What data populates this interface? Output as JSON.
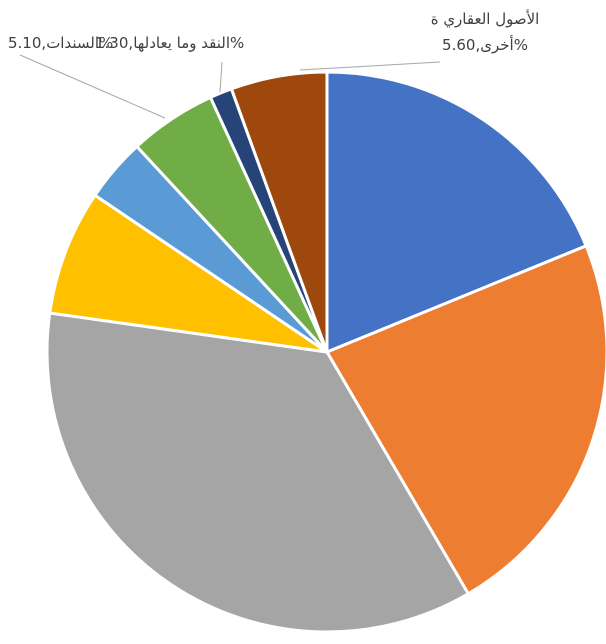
{
  "chart_data": {
    "type": "pie",
    "categories": [
      null,
      null,
      null,
      null,
      null,
      "السندات",
      "النقد وما يعادلها",
      "الأصول العقاري ة أخرى"
    ],
    "values": [
      19,
      23,
      36,
      7.3,
      3.7,
      5.1,
      1.3,
      5.6
    ],
    "value_labels": [
      null,
      null,
      null,
      null,
      null,
      ",5.10%",
      ",1.30%",
      ",5.60%"
    ],
    "colors": [
      "#4472c4",
      "#ed7d31",
      "#a5a5a5",
      "#ffc000",
      "#5b9bd5",
      "#70ad47",
      "#264478",
      "#9e480e"
    ]
  }
}
